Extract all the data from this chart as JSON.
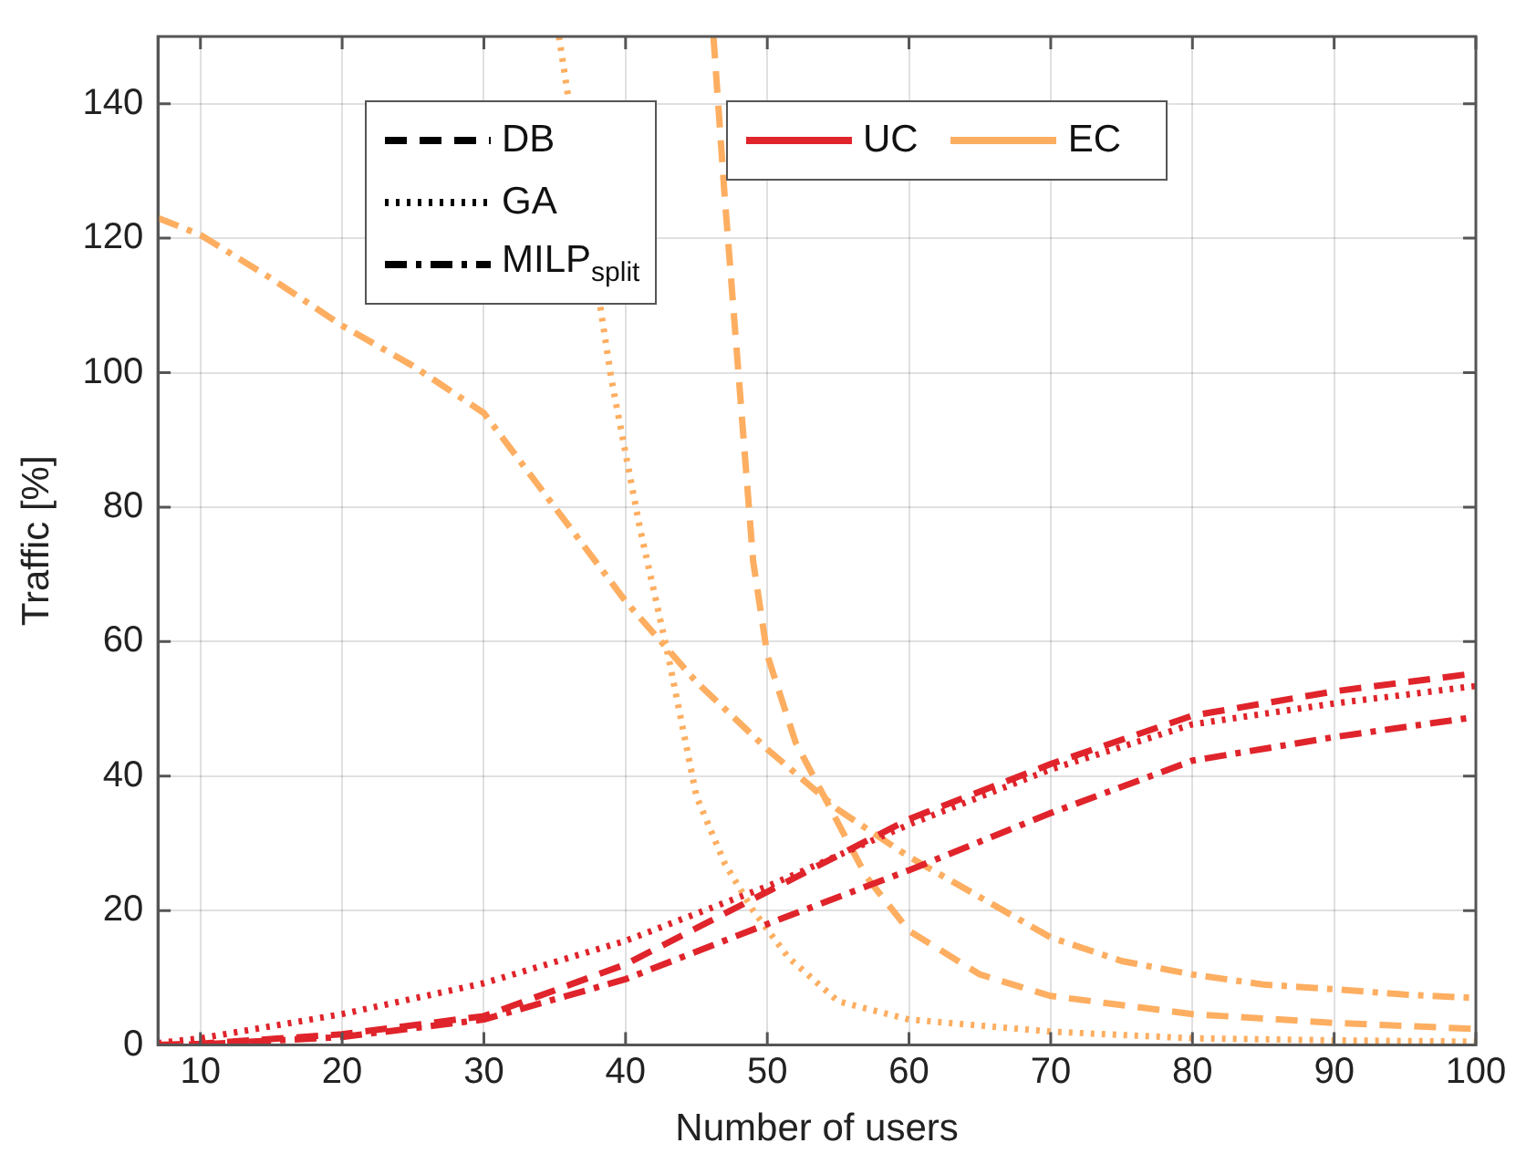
{
  "chart_data": {
    "type": "line",
    "xlabel": "Number of users",
    "ylabel": "Traffic [%]",
    "xlim": [
      7,
      100
    ],
    "xticks": [
      10,
      20,
      30,
      40,
      50,
      60,
      70,
      80,
      90,
      100
    ],
    "ylim": [
      0,
      150
    ],
    "yticks": [
      0,
      20,
      40,
      60,
      80,
      100,
      120,
      140
    ],
    "grid": true,
    "marker": "none",
    "annotations": [
      "DB",
      "GA",
      "MILP$_{split}$",
      "UC",
      "EC"
    ],
    "series": [
      {
        "color": "#e0242b",
        "line_style": "dashed",
        "x": [
          7,
          10,
          20,
          30,
          40,
          50,
          60,
          70,
          80,
          90,
          100
        ],
        "values": [
          0,
          0.2,
          1.6,
          4.3,
          12,
          22.8,
          33.6,
          41.8,
          49,
          52.6,
          55.3
        ]
      },
      {
        "color": "#e0242b",
        "line_style": "dotted",
        "x": [
          7,
          10,
          20,
          30,
          40,
          50,
          60,
          70,
          80,
          90,
          100
        ],
        "values": [
          0.3,
          1,
          4.6,
          9.2,
          15.5,
          23.6,
          32.8,
          41,
          47.7,
          50.8,
          53.4
        ]
      },
      {
        "color": "#e0242b",
        "line_style": "dashdot",
        "x": [
          7,
          10,
          20,
          30,
          40,
          50,
          60,
          70,
          80,
          90,
          100
        ],
        "values": [
          0,
          0.1,
          1.2,
          3.8,
          9.8,
          18,
          26,
          34.5,
          42.3,
          45.8,
          48.8
        ]
      },
      {
        "color": "#fdae61",
        "line_style": "dashed",
        "x": [
          46.2,
          47,
          48,
          49,
          50,
          52,
          55,
          57,
          60,
          65,
          70,
          80,
          90,
          100
        ],
        "values": [
          150,
          126,
          99,
          72,
          58,
          45,
          33,
          25,
          17,
          10.5,
          7.3,
          4.6,
          3.3,
          2.4
        ]
      },
      {
        "color": "#fdae61",
        "line_style": "dotted",
        "x": [
          35.3,
          39,
          41,
          43,
          45,
          47,
          49,
          51.5,
          55,
          60,
          70,
          80,
          90,
          100
        ],
        "values": [
          150,
          99,
          77,
          58,
          37,
          27,
          20,
          13,
          6.5,
          3.8,
          2,
          1,
          0.7,
          0.5
        ]
      },
      {
        "color": "#fdae61",
        "line_style": "dashdot",
        "x": [
          7,
          10,
          15,
          20,
          25,
          30,
          35,
          40,
          45,
          50,
          55,
          60,
          65,
          70,
          75,
          80,
          85,
          90,
          95,
          100
        ],
        "values": [
          123,
          120.5,
          114,
          107,
          101,
          94,
          80,
          66,
          54,
          44,
          35,
          28,
          22,
          16,
          12.5,
          10.5,
          9,
          8.3,
          7.5,
          7
        ]
      }
    ]
  }
}
